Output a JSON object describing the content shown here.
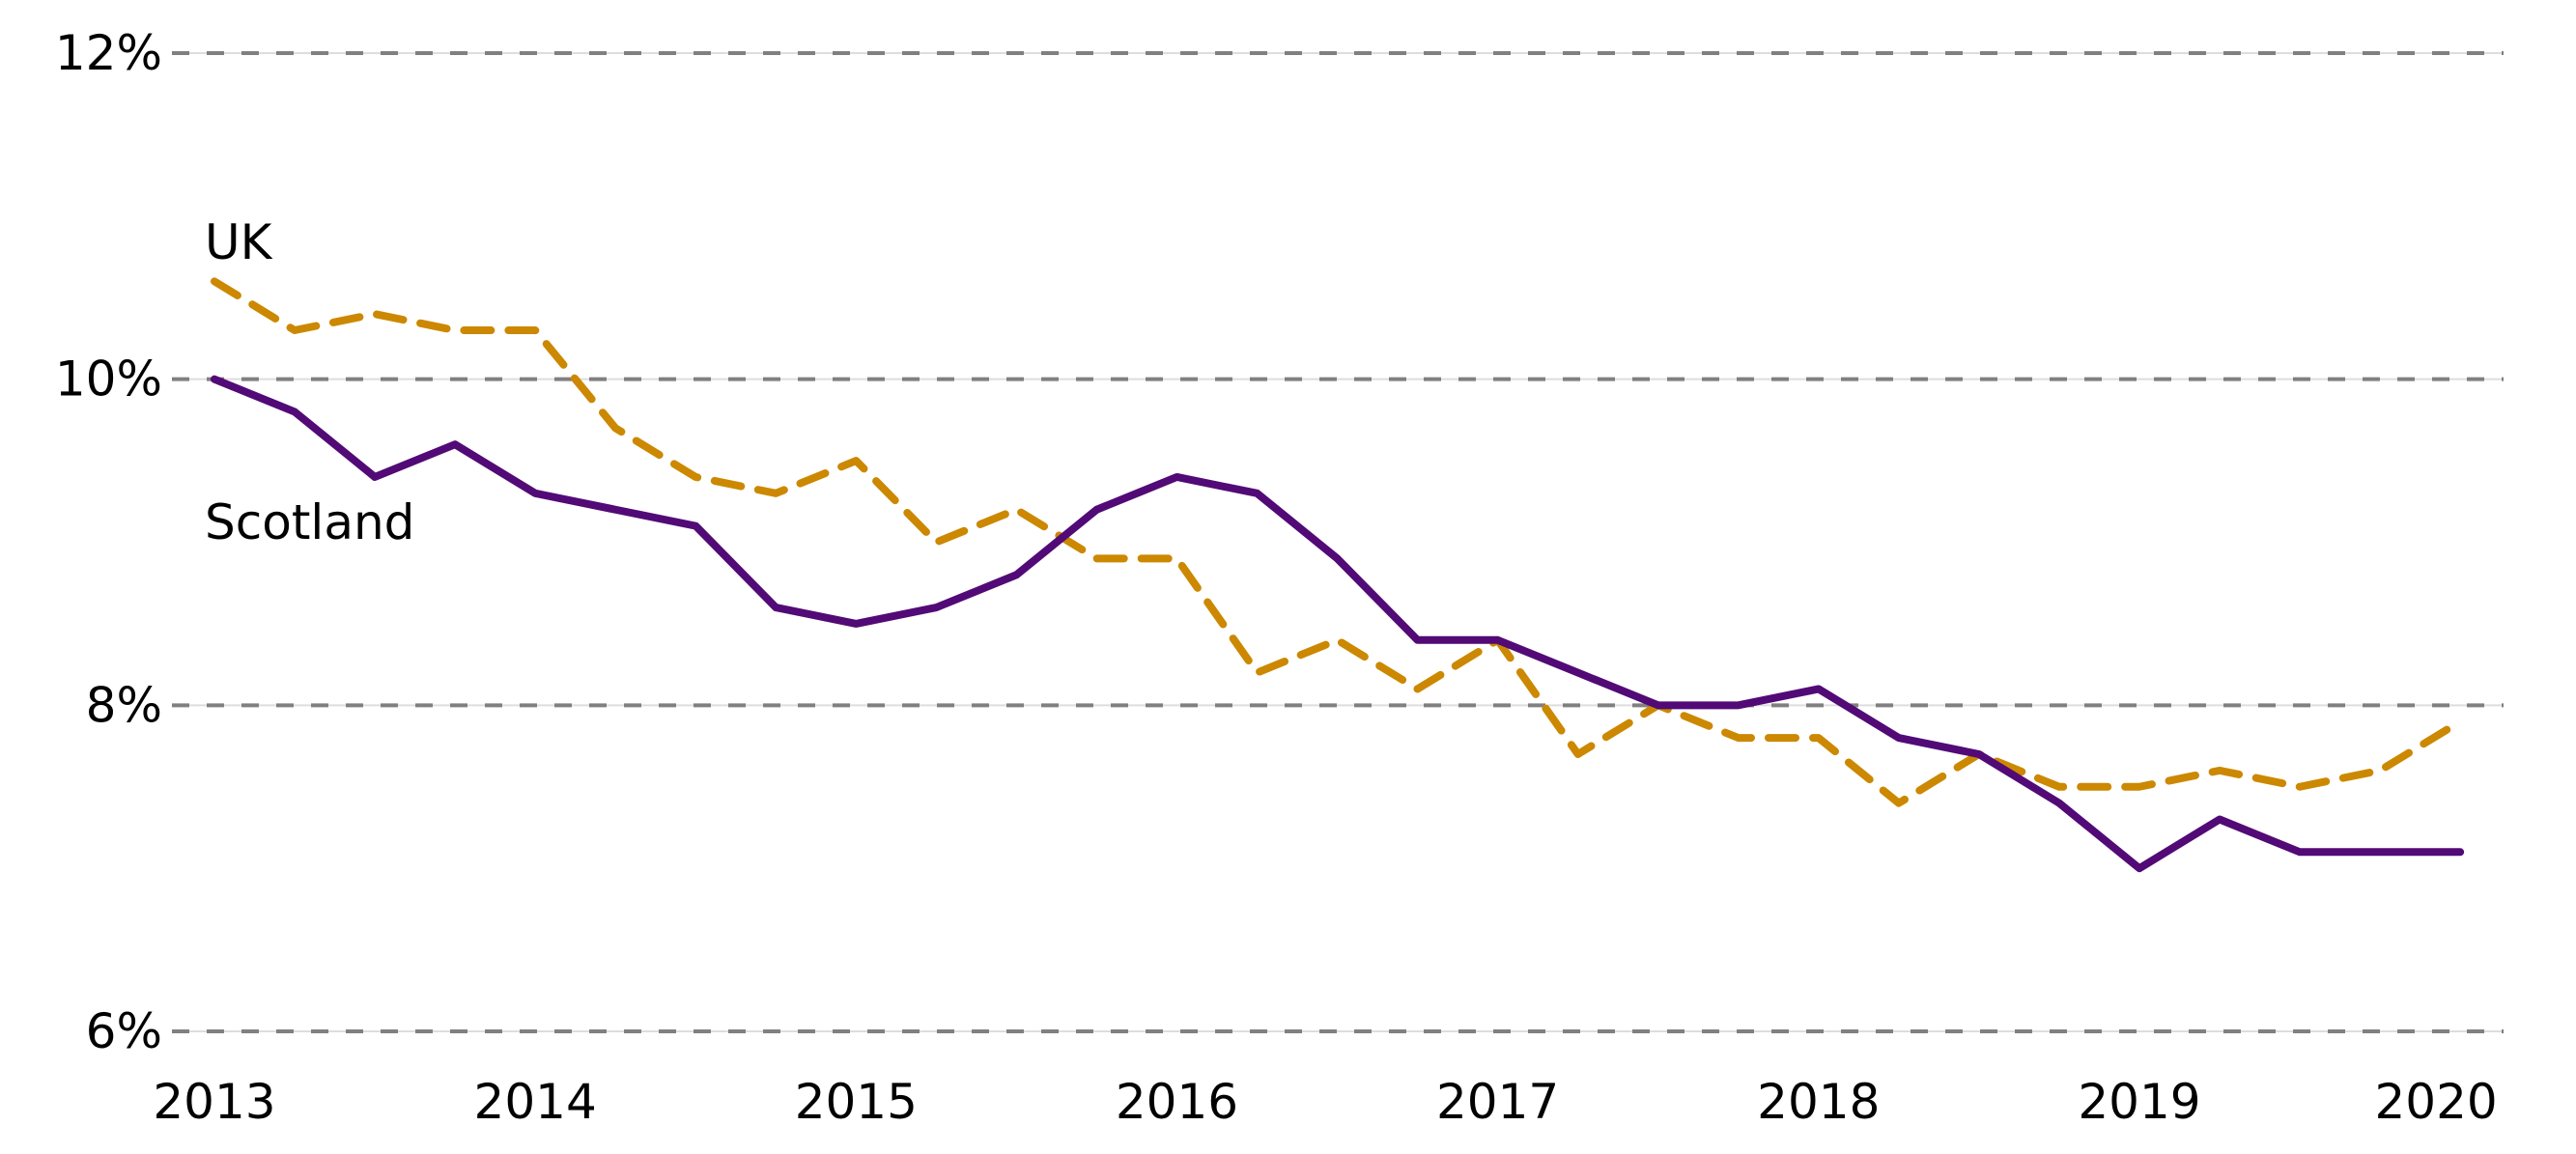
{
  "chart_data": {
    "type": "line",
    "title": "",
    "xlabel": "",
    "ylabel": "",
    "ylim": [
      6,
      12
    ],
    "y_ticks": [
      6,
      8,
      10,
      12
    ],
    "y_tick_labels": [
      "6%",
      "8%",
      "10%",
      "12%"
    ],
    "x_tick_labels": [
      "2013",
      "2014",
      "2015",
      "2016",
      "2017",
      "2018",
      "2019",
      "2020"
    ],
    "x_frequency": "quarterly",
    "x_start": "2013",
    "grid": "horizontal dashed",
    "legend": "inline labels at left",
    "series": [
      {
        "name": "UK",
        "color": "#CC8800",
        "style": "dashed",
        "values": [
          10.6,
          10.3,
          10.4,
          10.3,
          10.3,
          9.7,
          9.4,
          9.3,
          9.5,
          9.0,
          9.2,
          8.9,
          8.9,
          8.2,
          8.4,
          8.1,
          8.4,
          7.7,
          8.0,
          7.8,
          7.8,
          7.4,
          7.7,
          7.5,
          7.5,
          7.6,
          7.5,
          7.6,
          7.9
        ]
      },
      {
        "name": "Scotland",
        "color": "#520A76",
        "style": "solid",
        "values": [
          10.0,
          9.8,
          9.4,
          9.6,
          9.3,
          9.2,
          9.1,
          8.6,
          8.5,
          8.6,
          8.8,
          9.2,
          9.4,
          9.3,
          8.9,
          8.4,
          8.4,
          8.2,
          8.0,
          8.0,
          8.1,
          7.8,
          7.7,
          7.4,
          7.0,
          7.3,
          7.1,
          7.1,
          7.1
        ]
      }
    ]
  }
}
